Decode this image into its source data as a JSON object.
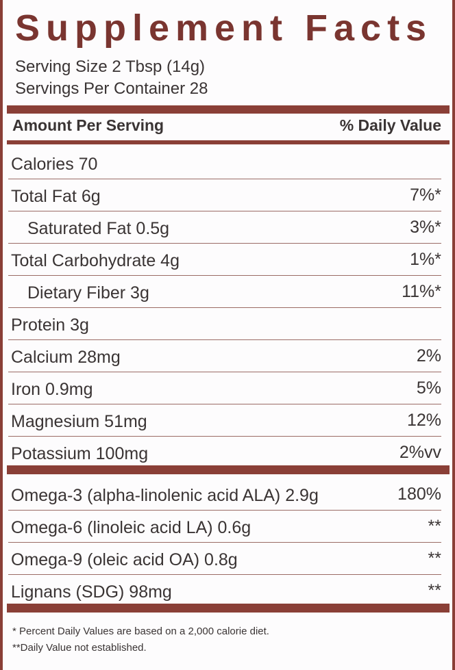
{
  "title": "Supplement Facts",
  "serving_size": "Serving Size 2 Tbsp (14g)",
  "servings_per_container": "Servings Per Container 28",
  "header": {
    "amount": "Amount Per Serving",
    "daily_value": "% Daily Value"
  },
  "sections": [
    {
      "rows": [
        {
          "name": "Calories 70"
        },
        {
          "name": "Total Fat 6g",
          "dv": "7%*",
          "subrows": [
            {
              "name": "Saturated Fat 0.5g",
              "dv": "3%*"
            }
          ]
        },
        {
          "name": "Total Carbohydrate 4g",
          "dv": "1%*",
          "subrows": [
            {
              "name": "Dietary Fiber 3g",
              "dv": "11%*"
            }
          ]
        },
        {
          "name": "Protein 3g"
        },
        {
          "name": "Calcium 28mg",
          "dv": "2%"
        },
        {
          "name": "Iron 0.9mg",
          "dv": "5%"
        },
        {
          "name": "Magnesium  51mg",
          "dv": "12%"
        },
        {
          "name": "Potassium 100mg",
          "dv": "2%vv"
        }
      ]
    },
    {
      "rows": [
        {
          "name": "Omega-3 (alpha-linolenic acid ALA) 2.9g",
          "dv": "180%"
        },
        {
          "name": "Omega-6 (linoleic acid LA) 0.6g",
          "dv": "**"
        },
        {
          "name": "Omega-9 (oleic acid OA) 0.8g",
          "dv": "**"
        },
        {
          "name": "Lignans (SDG) 98mg",
          "dv": "**"
        }
      ]
    }
  ],
  "footnotes": [
    "* Percent Daily Values are based on a 2,000 calorie diet.",
    "**Daily Value not established."
  ]
}
